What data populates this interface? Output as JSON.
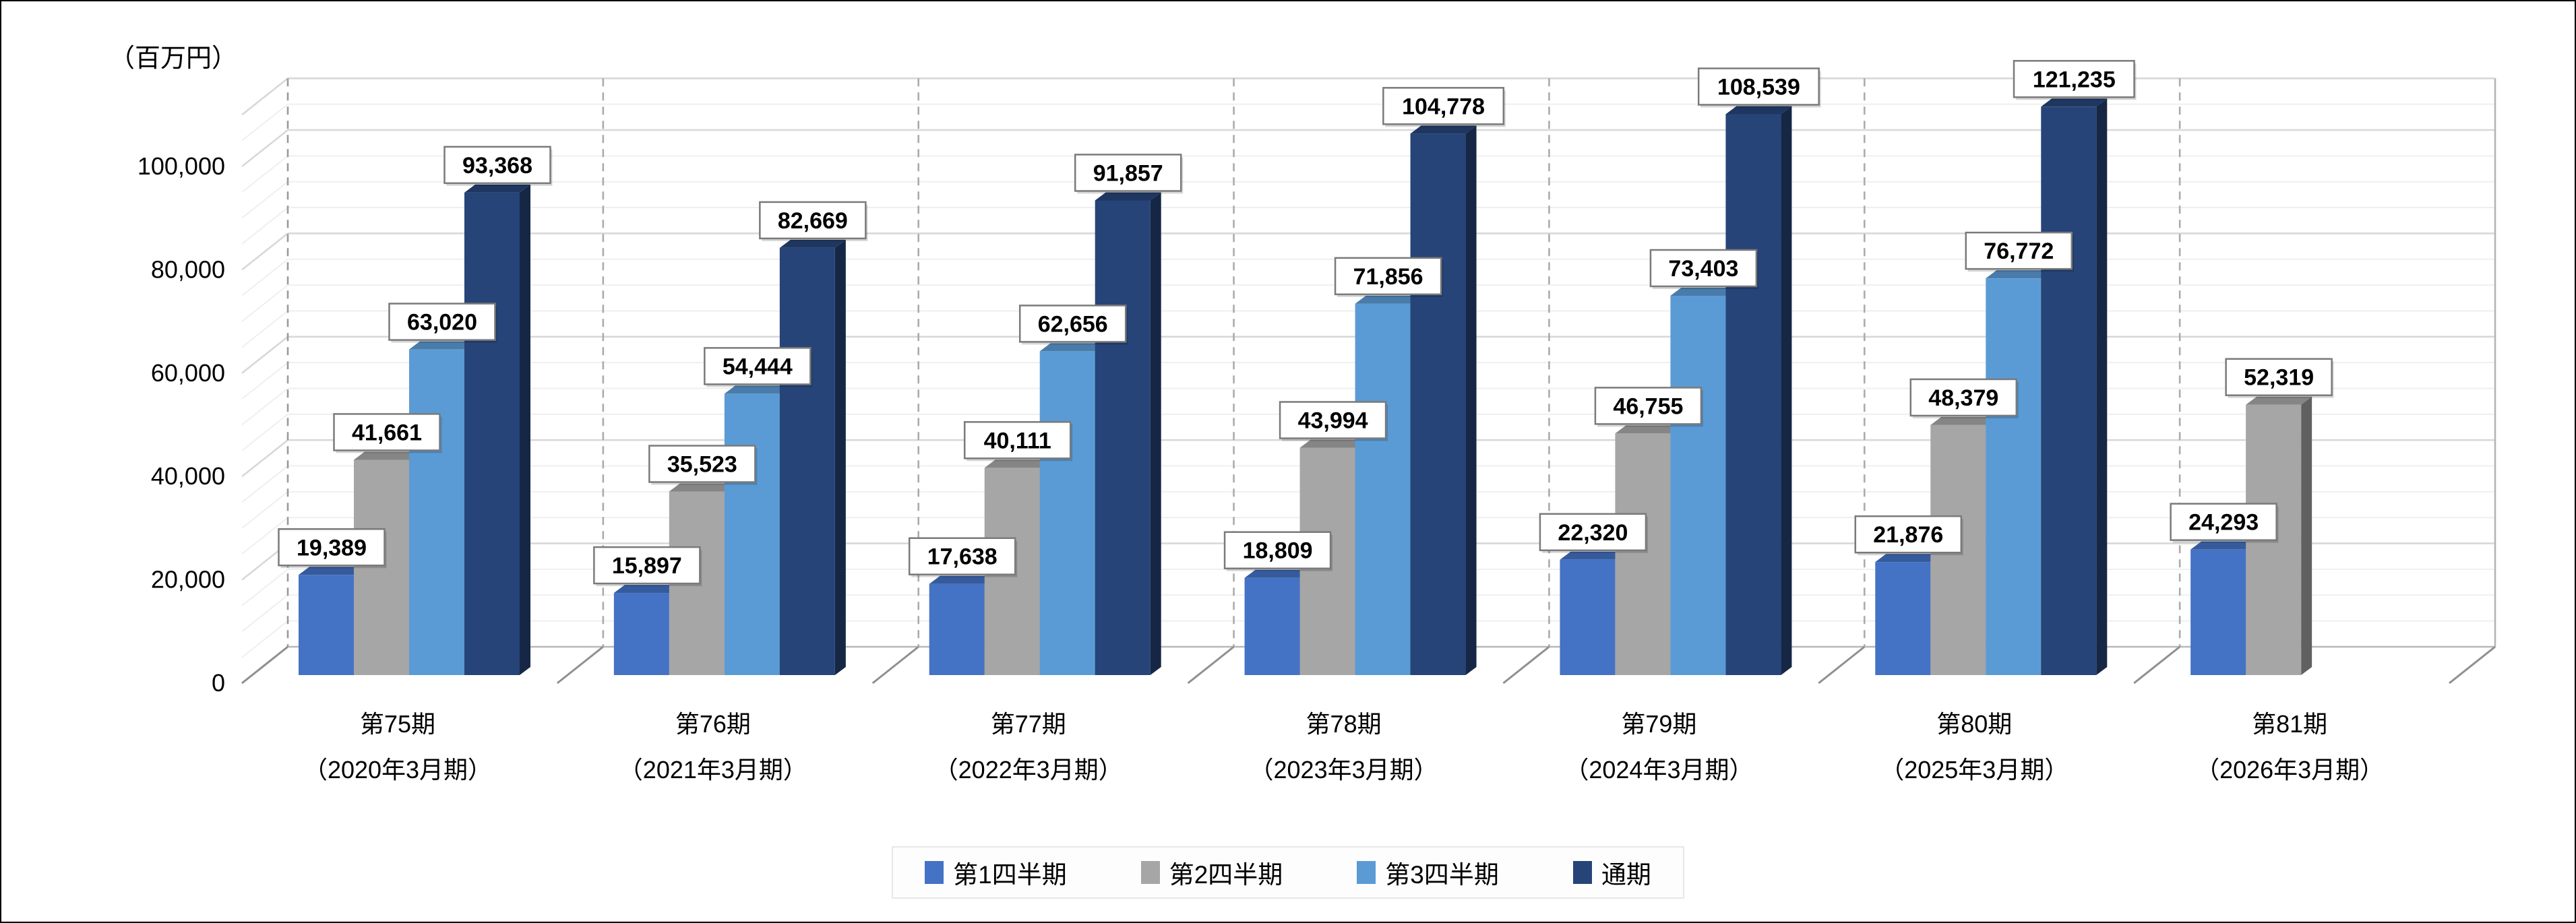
{
  "chart_data": {
    "type": "bar",
    "style": "3d-clustered-column",
    "title": "",
    "unit_label": "（百万円）",
    "y_axis": {
      "ticks": [
        0,
        20000,
        40000,
        60000,
        80000,
        100000
      ],
      "tick_labels": [
        "0",
        "20,000",
        "40,000",
        "60,000",
        "80,000",
        "100,000"
      ],
      "axis_display_max": 110000,
      "major_step": 20000,
      "minor_step": 5000,
      "grid": "on"
    },
    "categories": [
      {
        "line1": "第75期",
        "line2": "（2020年3月期）"
      },
      {
        "line1": "第76期",
        "line2": "（2021年3月期）"
      },
      {
        "line1": "第77期",
        "line2": "（2022年3月期）"
      },
      {
        "line1": "第78期",
        "line2": "（2023年3月期）"
      },
      {
        "line1": "第79期",
        "line2": "（2024年3月期）"
      },
      {
        "line1": "第80期",
        "line2": "（2025年3月期）"
      },
      {
        "line1": "第81期",
        "line2": "（2026年3月期）"
      }
    ],
    "series": [
      {
        "name": "第1四半期",
        "color": "#4472C4",
        "values": [
          19389,
          15897,
          17638,
          18809,
          22320,
          21876,
          24293
        ]
      },
      {
        "name": "第2四半期",
        "color": "#A6A6A6",
        "values": [
          41661,
          35523,
          40111,
          43994,
          46755,
          48379,
          52319
        ]
      },
      {
        "name": "第3四半期",
        "color": "#5B9BD5",
        "values": [
          63020,
          54444,
          62656,
          71856,
          73403,
          76772,
          null
        ]
      },
      {
        "name": "通期",
        "color": "#264478",
        "values": [
          93368,
          82669,
          91857,
          104778,
          108539,
          121235,
          null
        ]
      }
    ],
    "legend": {
      "position": "bottom"
    },
    "colors": {
      "gridline_minor": "#efefef",
      "gridline_major": "#d8d8d8",
      "zero_line": "#b8b8b8",
      "separator": "#ababab",
      "label_box_border": "#7a7a7a"
    }
  }
}
